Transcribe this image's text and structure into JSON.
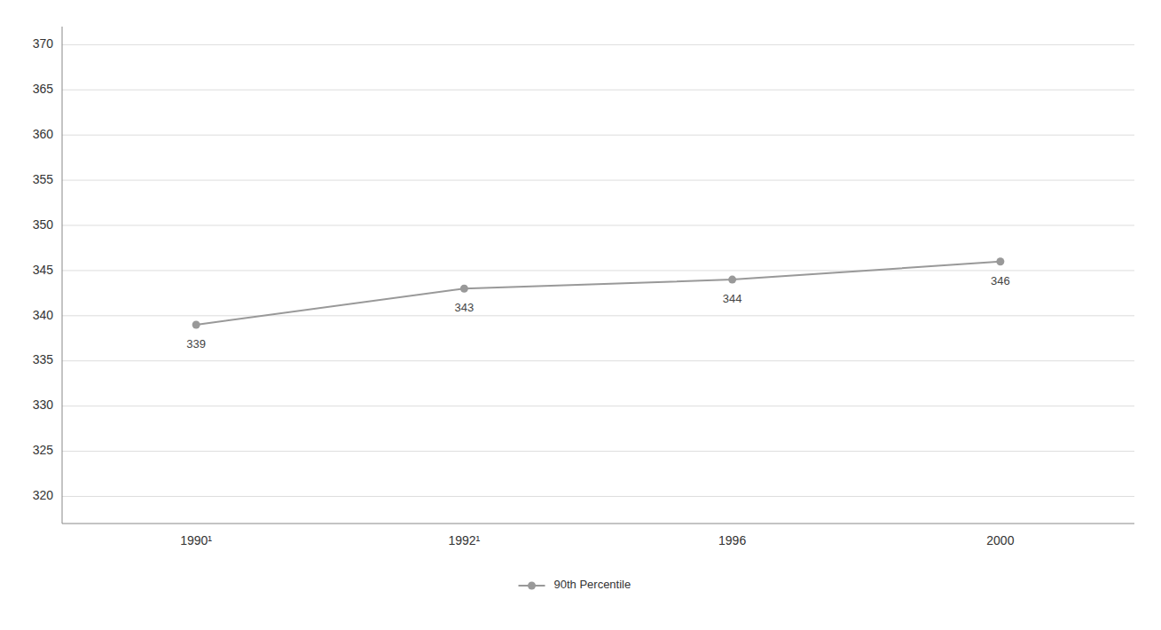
{
  "chart_data": {
    "type": "line",
    "categories": [
      "1990¹",
      "1992¹",
      "1996",
      "2000"
    ],
    "series": [
      {
        "name": "90th Percentile",
        "color": "#999999",
        "marker": "circle",
        "values": [
          339,
          343,
          344,
          346
        ]
      }
    ],
    "ylim": [
      317,
      372
    ],
    "yticks": [
      320,
      325,
      330,
      335,
      340,
      345,
      350,
      355,
      360,
      365,
      370
    ],
    "grid": true,
    "legend": "bottom",
    "data_labels": true
  }
}
